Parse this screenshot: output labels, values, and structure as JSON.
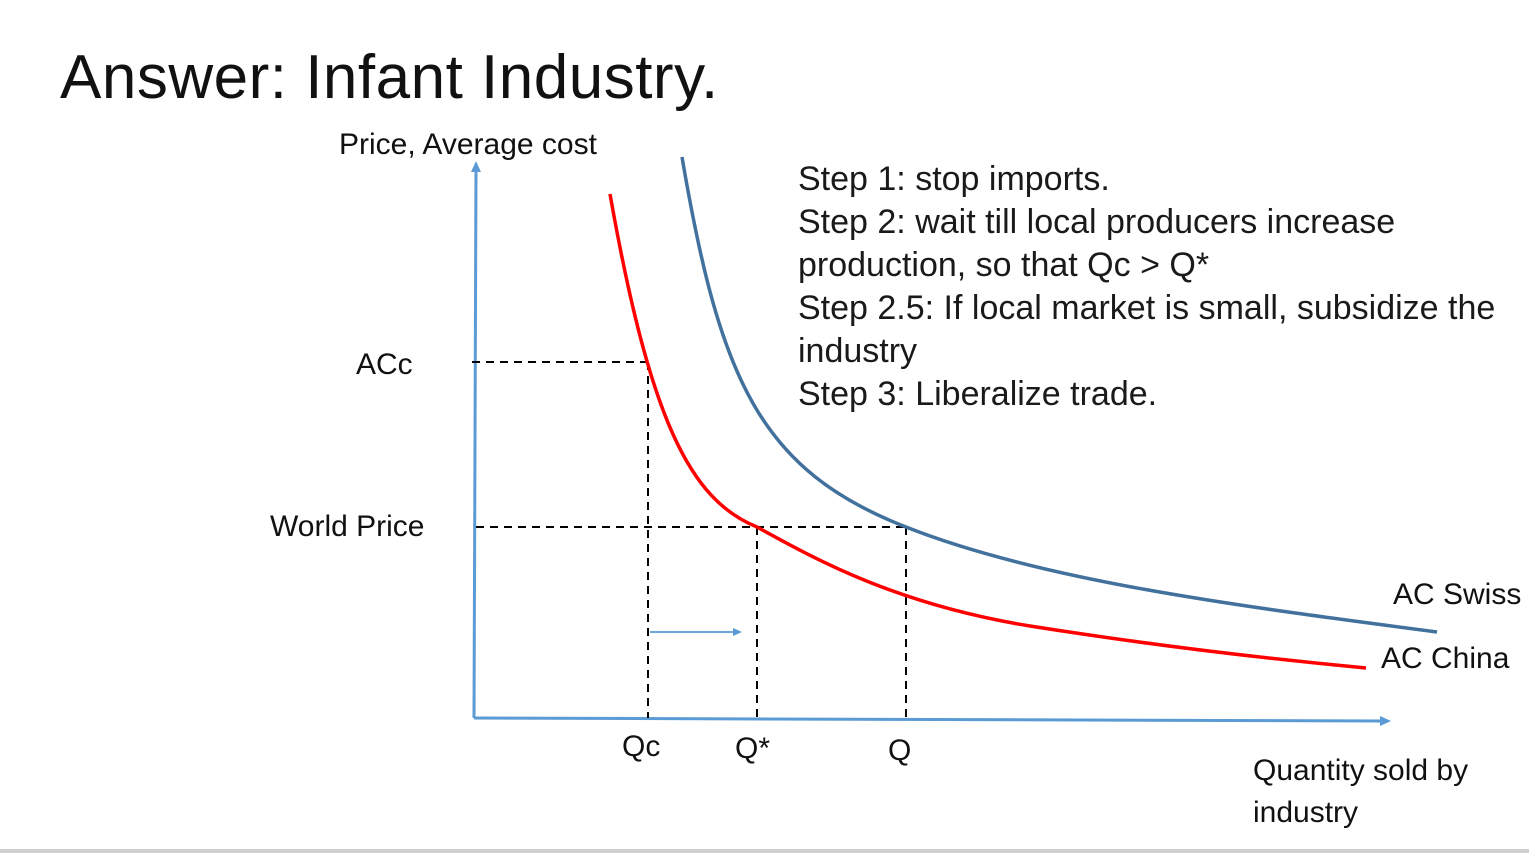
{
  "title": "Answer: Infant Industry.",
  "axes": {
    "y_label": "Price, Average cost",
    "x_label": "Quantity sold by industry"
  },
  "levels": {
    "acc_label": "ACc",
    "world_price_label": "World Price"
  },
  "quantities": {
    "qc_label": "Qc",
    "qstar_label": "Q*",
    "q_label": "Q"
  },
  "curves": {
    "swiss": {
      "label": "AC Swiss",
      "color": "#41719c"
    },
    "china": {
      "label": "AC China",
      "color": "#ff0000"
    }
  },
  "steps": [
    "Step 1: stop imports.",
    "Step 2: wait till local producers increase production, so that Qc > Q*",
    "Step 2.5: If local market is small, subsidize the industry",
    "Step 3: Liberalize trade."
  ],
  "colors": {
    "axis": "#5b9bd5",
    "guide_lines": "#000000",
    "arrow": "#5b9bd5"
  }
}
